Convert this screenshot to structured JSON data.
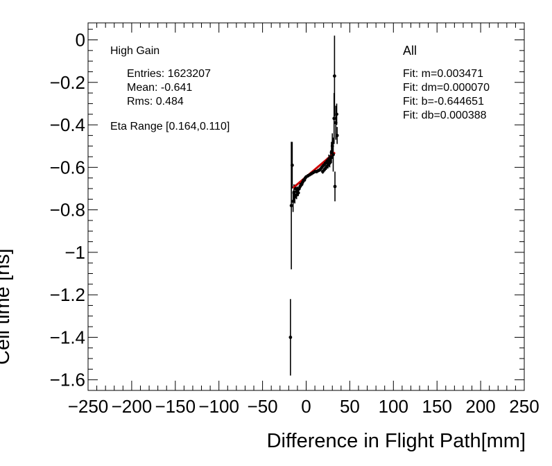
{
  "chart_data": {
    "type": "scatter",
    "xlabel": "Difference in Flight Path[mm]",
    "ylabel": "Cell time [ns]",
    "xlim": [
      -250,
      250
    ],
    "ylim": [
      -1.65,
      0.08
    ],
    "x_ticks": [
      -250,
      -200,
      -150,
      -100,
      -50,
      0,
      50,
      100,
      150,
      200,
      250
    ],
    "x_tick_labels": [
      "−250",
      "−200",
      "−150",
      "−100",
      "−50",
      "0",
      "50",
      "100",
      "150",
      "200",
      "250"
    ],
    "y_ticks": [
      0,
      -0.2,
      -0.4,
      -0.6,
      -0.8,
      -1,
      -1.2,
      -1.4,
      -1.6
    ],
    "y_tick_labels": [
      "0",
      "−0.2",
      "−0.4",
      "−0.6",
      "−0.8",
      "−1",
      "−1.2",
      "−1.4",
      "−1.6"
    ],
    "grid": false,
    "series": [
      {
        "marker_color": "#000000",
        "points": [
          {
            "x": -18,
            "y": -1.4,
            "err": 0.18
          },
          {
            "x": -17,
            "y": -0.78,
            "err": 0.3
          },
          {
            "x": -16,
            "y": -0.59,
            "err": 0.11
          },
          {
            "x": -15,
            "y": -0.76,
            "err": 0.05
          },
          {
            "x": -14,
            "y": -0.72,
            "err": 0.04
          },
          {
            "x": -13,
            "y": -0.74,
            "err": 0.03
          },
          {
            "x": -12,
            "y": -0.7,
            "err": 0.02
          },
          {
            "x": -11,
            "y": -0.73,
            "err": 0.02
          },
          {
            "x": -10,
            "y": -0.71,
            "err": 0.02
          },
          {
            "x": -9,
            "y": -0.72,
            "err": 0.015
          },
          {
            "x": -8,
            "y": -0.7,
            "err": 0.01
          },
          {
            "x": -7,
            "y": -0.69,
            "err": 0.01
          },
          {
            "x": -6,
            "y": -0.68,
            "err": 0.01
          },
          {
            "x": -5,
            "y": -0.68,
            "err": 0.01
          },
          {
            "x": -4,
            "y": -0.67,
            "err": 0.01
          },
          {
            "x": -3,
            "y": -0.66,
            "err": 0.008
          },
          {
            "x": -2,
            "y": -0.66,
            "err": 0.008
          },
          {
            "x": -1,
            "y": -0.65,
            "err": 0.008
          },
          {
            "x": 0,
            "y": -0.645,
            "err": 0.008
          },
          {
            "x": 2,
            "y": -0.64,
            "err": 0.008
          },
          {
            "x": 4,
            "y": -0.635,
            "err": 0.008
          },
          {
            "x": 6,
            "y": -0.63,
            "err": 0.008
          },
          {
            "x": 8,
            "y": -0.625,
            "err": 0.008
          },
          {
            "x": 10,
            "y": -0.62,
            "err": 0.008
          },
          {
            "x": 12,
            "y": -0.62,
            "err": 0.008
          },
          {
            "x": 14,
            "y": -0.615,
            "err": 0.008
          },
          {
            "x": 16,
            "y": -0.61,
            "err": 0.01
          },
          {
            "x": 18,
            "y": -0.6,
            "err": 0.01
          },
          {
            "x": 19,
            "y": -0.62,
            "err": 0.01
          },
          {
            "x": 20,
            "y": -0.59,
            "err": 0.01
          },
          {
            "x": 21,
            "y": -0.61,
            "err": 0.01
          },
          {
            "x": 22,
            "y": -0.58,
            "err": 0.012
          },
          {
            "x": 23,
            "y": -0.6,
            "err": 0.012
          },
          {
            "x": 24,
            "y": -0.57,
            "err": 0.015
          },
          {
            "x": 25,
            "y": -0.59,
            "err": 0.015
          },
          {
            "x": 26,
            "y": -0.56,
            "err": 0.02
          },
          {
            "x": 27,
            "y": -0.58,
            "err": 0.02
          },
          {
            "x": 28,
            "y": -0.55,
            "err": 0.03
          },
          {
            "x": 29,
            "y": -0.53,
            "err": 0.05
          },
          {
            "x": 30,
            "y": -0.5,
            "err": 0.06
          },
          {
            "x": 31,
            "y": -0.54,
            "err": 0.08
          },
          {
            "x": 32,
            "y": -0.37,
            "err": 0.12
          },
          {
            "x": 32.5,
            "y": -0.17,
            "err": 0.19
          },
          {
            "x": 33,
            "y": -0.69,
            "err": 0.07
          },
          {
            "x": 34,
            "y": -0.39,
            "err": 0.08
          },
          {
            "x": 35,
            "y": -0.35,
            "err": 0.05
          },
          {
            "x": 35.5,
            "y": -0.45,
            "err": 0.04
          }
        ]
      }
    ],
    "fit": {
      "color": "#cc0000",
      "slope": 0.003471,
      "intercept": -0.644651,
      "x_range": [
        -15,
        33
      ]
    }
  },
  "annotations": {
    "gain": "High Gain",
    "entries": "Entries: 1623207",
    "mean": "Mean: -0.641",
    "rms": "Rms: 0.484",
    "eta_range": "Eta Range [0.164,0.110]",
    "selection": "All",
    "fit_m": "Fit: m=0.003471",
    "fit_dm": "Fit: dm=0.000070",
    "fit_b": "Fit: b=-0.644651",
    "fit_db": "Fit: db=0.000388"
  }
}
